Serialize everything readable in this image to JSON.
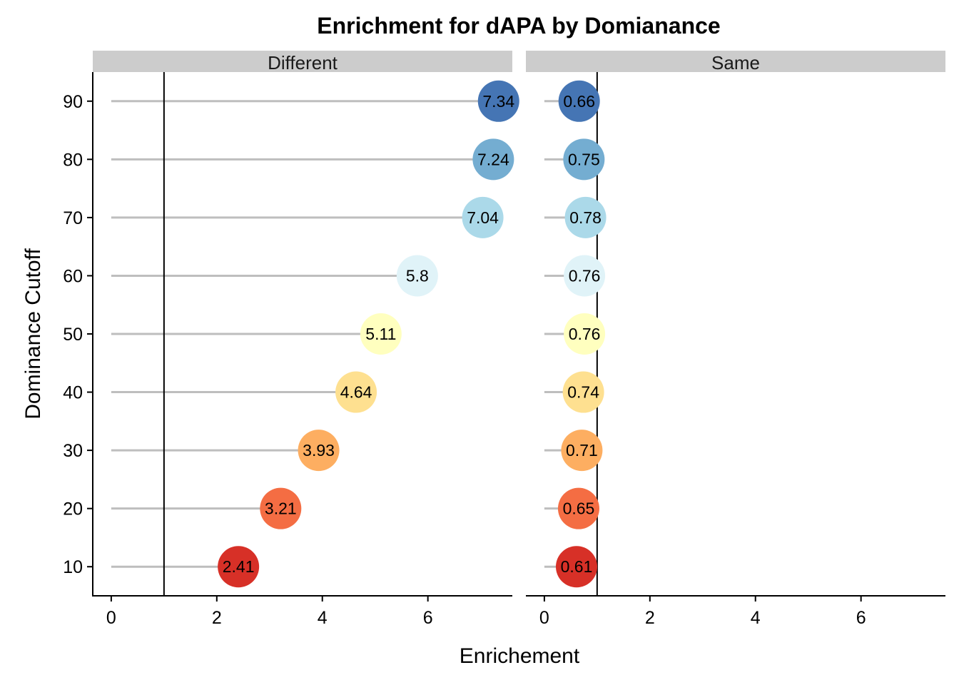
{
  "chart_data": {
    "type": "lollipop",
    "title": "Enrichment for dAPA by Domianance",
    "xlabel": "Enrichement",
    "ylabel": "Dominance Cutoff",
    "xlim": [
      -0.35,
      7.6
    ],
    "ylim": [
      5,
      95
    ],
    "x_ticks": [
      0,
      2,
      4,
      6
    ],
    "y_ticks": [
      10,
      20,
      30,
      40,
      50,
      60,
      70,
      80,
      90
    ],
    "reference_line": 1,
    "colors": {
      "10": "#d73027",
      "20": "#f46d43",
      "30": "#fdae61",
      "40": "#fee090",
      "50": "#ffffbf",
      "60": "#e0f3f8",
      "70": "#abd9e9",
      "80": "#74add1",
      "90": "#4575b4"
    },
    "panels": [
      {
        "name": "Different",
        "points": [
          {
            "cutoff": 10,
            "value": 2.41,
            "label": "2.41"
          },
          {
            "cutoff": 20,
            "value": 3.21,
            "label": "3.21"
          },
          {
            "cutoff": 30,
            "value": 3.93,
            "label": "3.93"
          },
          {
            "cutoff": 40,
            "value": 4.64,
            "label": "4.64"
          },
          {
            "cutoff": 50,
            "value": 5.11,
            "label": "5.11"
          },
          {
            "cutoff": 60,
            "value": 5.8,
            "label": "5.8"
          },
          {
            "cutoff": 70,
            "value": 7.04,
            "label": "7.04"
          },
          {
            "cutoff": 80,
            "value": 7.24,
            "label": "7.24"
          },
          {
            "cutoff": 90,
            "value": 7.34,
            "label": "7.34"
          }
        ]
      },
      {
        "name": "Same",
        "points": [
          {
            "cutoff": 10,
            "value": 0.61,
            "label": "0.61"
          },
          {
            "cutoff": 20,
            "value": 0.65,
            "label": "0.65"
          },
          {
            "cutoff": 30,
            "value": 0.71,
            "label": "0.71"
          },
          {
            "cutoff": 40,
            "value": 0.74,
            "label": "0.74"
          },
          {
            "cutoff": 50,
            "value": 0.76,
            "label": "0.76"
          },
          {
            "cutoff": 60,
            "value": 0.76,
            "label": "0.76"
          },
          {
            "cutoff": 70,
            "value": 0.78,
            "label": "0.78"
          },
          {
            "cutoff": 80,
            "value": 0.75,
            "label": "0.75"
          },
          {
            "cutoff": 90,
            "value": 0.66,
            "label": "0.66"
          }
        ]
      }
    ]
  }
}
